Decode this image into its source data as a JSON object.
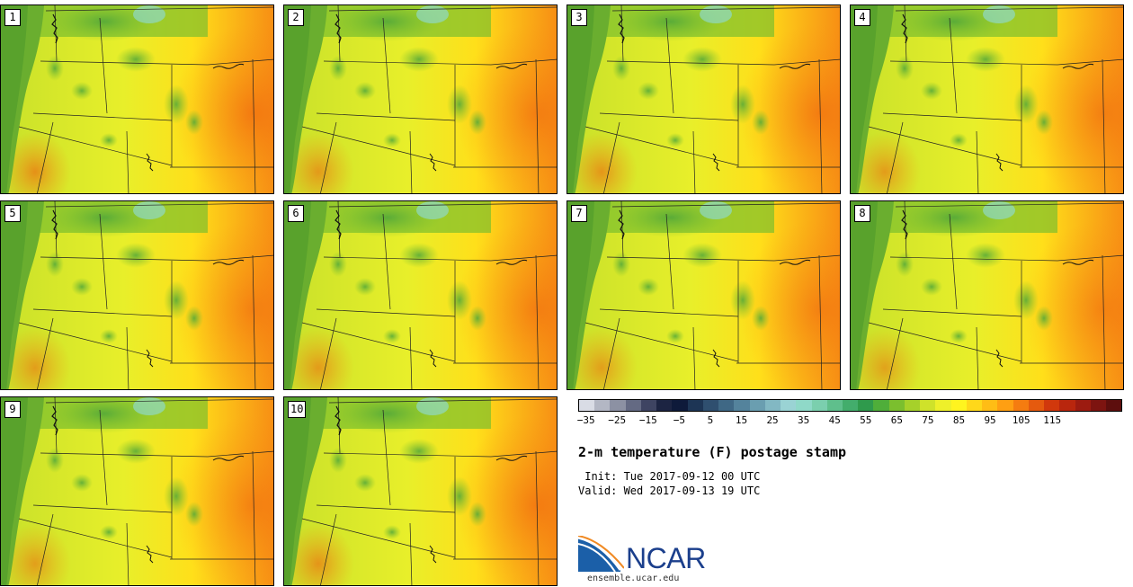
{
  "stamps": [
    {
      "label": "1",
      "warm": 0.95
    },
    {
      "label": "2",
      "warm": 0.85
    },
    {
      "label": "3",
      "warm": 0.88
    },
    {
      "label": "4",
      "warm": 0.82
    },
    {
      "label": "5",
      "warm": 0.8
    },
    {
      "label": "6",
      "warm": 0.83
    },
    {
      "label": "7",
      "warm": 0.78
    },
    {
      "label": "8",
      "warm": 0.75
    },
    {
      "label": "9",
      "warm": 0.78
    },
    {
      "label": "10",
      "warm": 0.9
    }
  ],
  "colorbar": {
    "tick_labels": [
      "−35",
      "−25",
      "−15",
      "−5",
      "5",
      "15",
      "25",
      "35",
      "45",
      "55",
      "65",
      "75",
      "85",
      "95",
      "105",
      "115"
    ],
    "colors": [
      "#d9dce5",
      "#b3b7c4",
      "#8c91a3",
      "#646a83",
      "#3e4462",
      "#1c2442",
      "#0e1a3a",
      "#1d3555",
      "#2f4f6f",
      "#3f6885",
      "#54839c",
      "#6a9eb0",
      "#82b8c3",
      "#9ad3d4",
      "#8fd9c8",
      "#7bcfae",
      "#5fbf8c",
      "#43ad6c",
      "#2f9a4c",
      "#4fae3a",
      "#7bbf2e",
      "#a6d12a",
      "#cfe22a",
      "#eef02a",
      "#fff41f",
      "#ffd81a",
      "#ffbd15",
      "#ff9f12",
      "#f57c10",
      "#e55a0e",
      "#d1380c",
      "#b9260d",
      "#9c1b10",
      "#7d1410",
      "#5d0e0d"
    ]
  },
  "title": "2-m temperature (F) postage stamp",
  "init_text": " Init: Tue 2017-09-12 00 UTC",
  "valid_text": "Valid: Wed 2017-09-13 19 UTC",
  "logo_text": "NCAR",
  "website": "ensemble.ucar.edu",
  "colors": {
    "ocean": "#6aae2f",
    "border_line": "#222222",
    "logo_blue": "#1b3f8c"
  }
}
